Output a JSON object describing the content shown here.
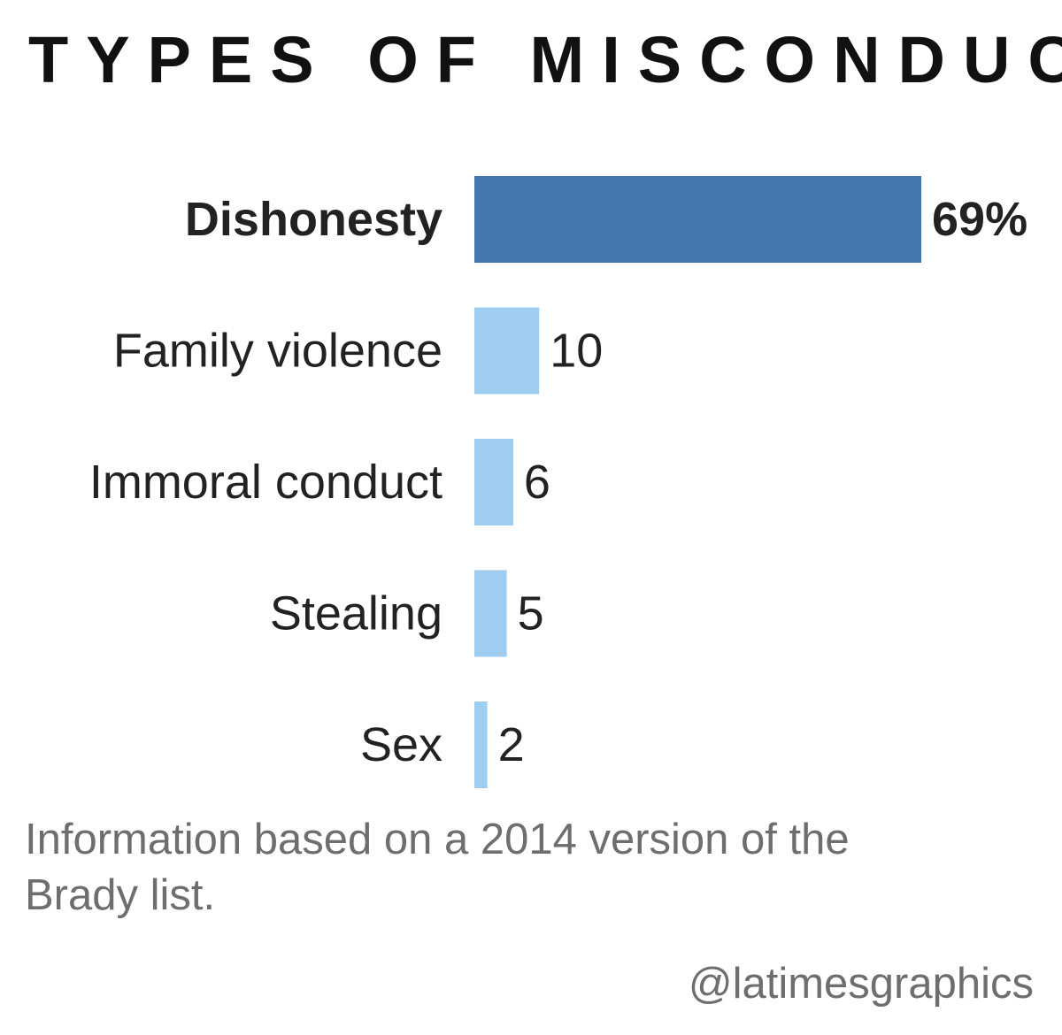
{
  "title": "TYPES OF MISCONDUCT",
  "footnote": "Information based on a 2014 version of the Brady list.",
  "credit": "@latimesgraphics",
  "colors": {
    "highlight_bar": "#4677b1",
    "bar": "#9fcdef",
    "text": "#222222",
    "note_text": "#6e6e6e"
  },
  "chart_data": {
    "type": "bar",
    "orientation": "horizontal",
    "title": "TYPES OF MISCONDUCT",
    "categories": [
      "Dishonesty",
      "Family violence",
      "Immoral conduct",
      "Stealing",
      "Sex"
    ],
    "values": [
      69,
      10,
      6,
      5,
      2
    ],
    "value_labels": [
      "69%",
      "10",
      "6",
      "5",
      "2"
    ],
    "unit": "%",
    "highlight_index": 0,
    "xlim": [
      0,
      69
    ],
    "grid": false,
    "legend": "none"
  }
}
